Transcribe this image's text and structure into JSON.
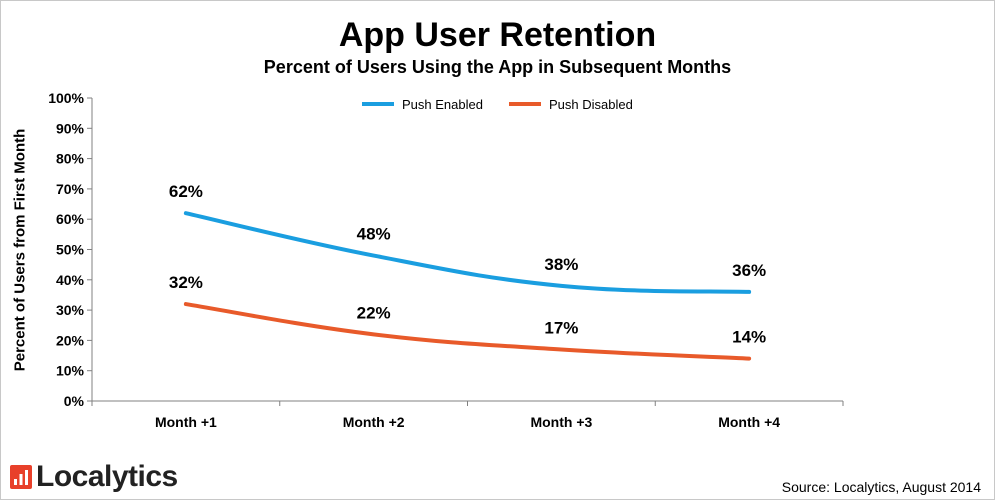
{
  "brand": {
    "name": "Localytics",
    "logo_color": "#e8402a"
  },
  "source": "Source: Localytics, August 2014",
  "chart_data": {
    "type": "line",
    "title": "App User Retention",
    "subtitle": "Percent of Users Using the App in Subsequent Months",
    "xlabel": "",
    "ylabel": "Percent of Users from First Month",
    "categories": [
      "Month +1",
      "Month +2",
      "Month +3",
      "Month +4"
    ],
    "y_ticks": [
      "0%",
      "10%",
      "20%",
      "30%",
      "40%",
      "50%",
      "60%",
      "70%",
      "80%",
      "90%",
      "100%"
    ],
    "ylim": [
      0,
      100
    ],
    "grid": false,
    "legend_position": "top-center",
    "series": [
      {
        "name": "Push Enabled",
        "values": [
          62,
          48,
          38,
          36
        ],
        "labels": [
          "62%",
          "48%",
          "38%",
          "36%"
        ],
        "color": "#1a9ee0"
      },
      {
        "name": "Push Disabled",
        "values": [
          32,
          22,
          17,
          14
        ],
        "labels": [
          "32%",
          "22%",
          "17%",
          "14%"
        ],
        "color": "#e85a2a"
      }
    ]
  }
}
